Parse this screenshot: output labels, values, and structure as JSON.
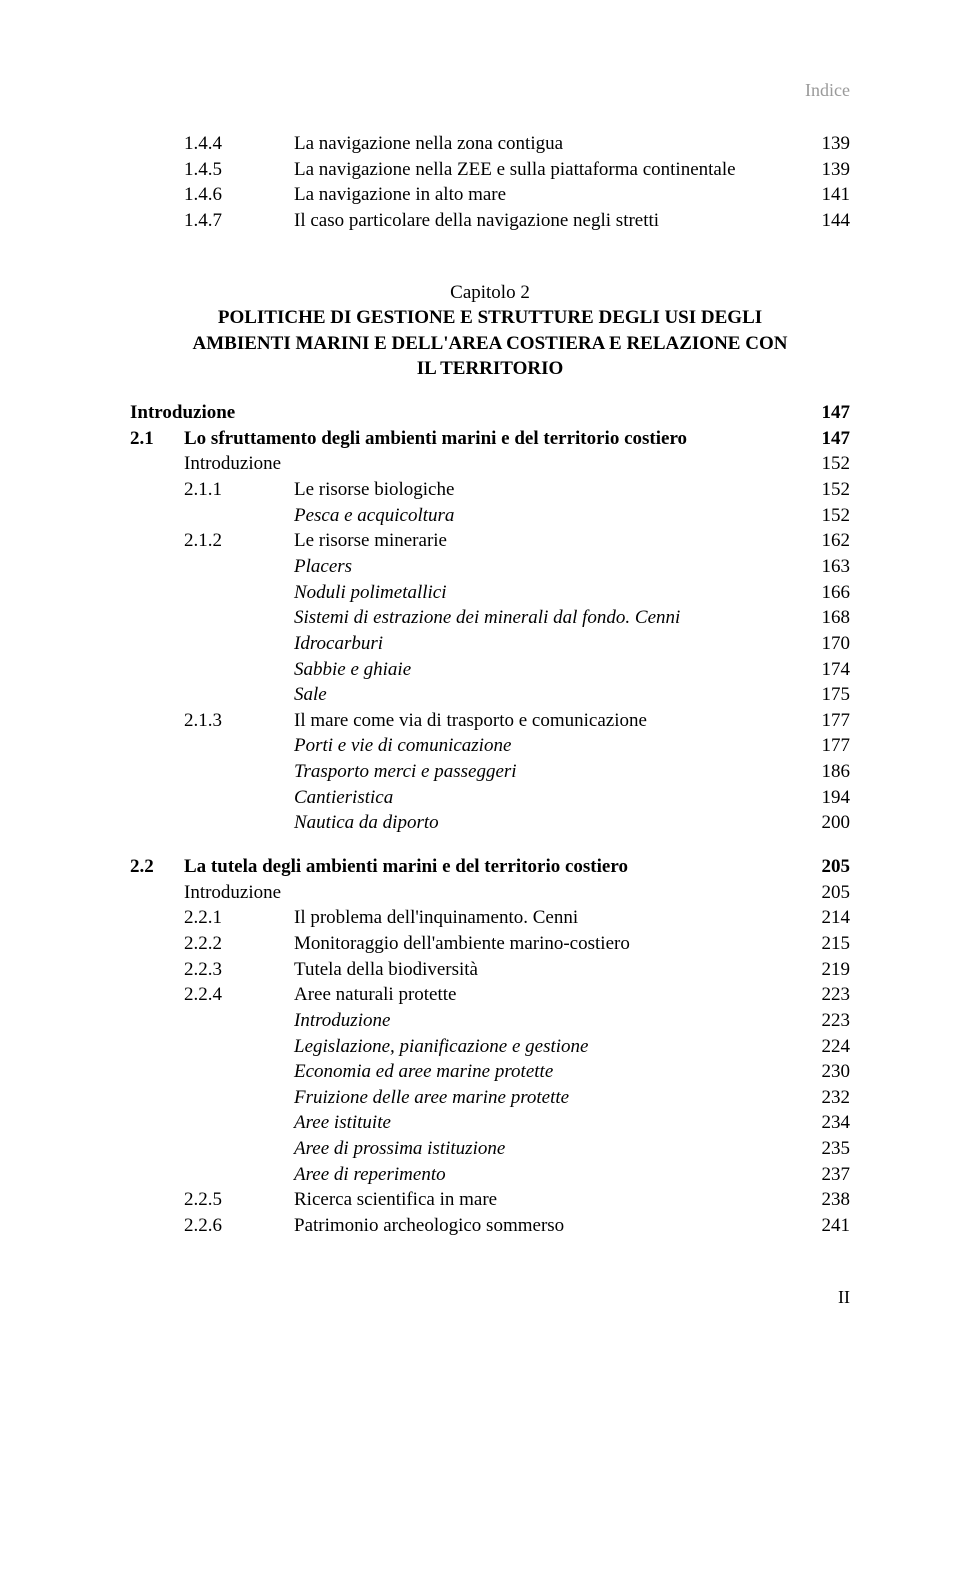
{
  "header_label": "Indice",
  "footer_label": "II",
  "top_rows": [
    {
      "num": "1.4.4",
      "txt": "La navigazione nella zona contigua",
      "pg": "139",
      "indent": "indent-2"
    },
    {
      "num": "1.4.5",
      "txt": "La navigazione nella ZEE e sulla piattaforma continentale",
      "pg": "139",
      "indent": "indent-2"
    },
    {
      "num": "1.4.6",
      "txt": "La navigazione in alto mare",
      "pg": "141",
      "indent": "indent-2"
    },
    {
      "num": "1.4.7",
      "txt": "Il caso particolare della navigazione negli stretti",
      "pg": "144",
      "indent": "indent-2"
    }
  ],
  "chapter": {
    "label": "Capitolo 2",
    "title_lines": [
      "POLITICHE DI GESTIONE E STRUTTURE DEGLI USI DEGLI",
      "AMBIENTI MARINI E DELL'AREA COSTIERA E RELAZIONE CON",
      "IL TERRITORIO"
    ]
  },
  "block2": [
    {
      "num": "",
      "txt": "Introduzione",
      "pg": "147",
      "indent": "row",
      "bold": true,
      "no_indent": true
    },
    {
      "num": "2.1",
      "txt": "Lo sfruttamento degli ambienti marini e del territorio costiero",
      "pg": "147",
      "indent": "indent-1",
      "bold": true
    },
    {
      "num": "",
      "txt": "Introduzione",
      "pg": "152",
      "indent": "indent-intro"
    },
    {
      "num": "2.1.1",
      "txt": "Le risorse biologiche",
      "pg": "152",
      "indent": "indent-2"
    },
    {
      "num": "",
      "txt": "Pesca e acquicoltura",
      "pg": "152",
      "indent": "indent-sub",
      "italic": true
    },
    {
      "num": "2.1.2",
      "txt": "Le risorse minerarie",
      "pg": "162",
      "indent": "indent-2"
    },
    {
      "num": "",
      "txt": "Placers",
      "pg": "163",
      "indent": "indent-sub",
      "italic": true
    },
    {
      "num": "",
      "txt": "Noduli polimetallici",
      "pg": "166",
      "indent": "indent-sub",
      "italic": true
    },
    {
      "num": "",
      "txt": "Sistemi di estrazione dei minerali dal fondo. Cenni",
      "pg": "168",
      "indent": "indent-sub",
      "italic": true
    },
    {
      "num": "",
      "txt": "Idrocarburi",
      "pg": "170",
      "indent": "indent-sub",
      "italic": true
    },
    {
      "num": "",
      "txt": "Sabbie e ghiaie",
      "pg": "174",
      "indent": "indent-sub",
      "italic": true
    },
    {
      "num": "",
      "txt": "Sale",
      "pg": "175",
      "indent": "indent-sub",
      "italic": true
    },
    {
      "num": "2.1.3",
      "txt": "Il mare come via di trasporto e comunicazione",
      "pg": "177",
      "indent": "indent-2"
    },
    {
      "num": "",
      "txt": "Porti e vie di comunicazione",
      "pg": "177",
      "indent": "indent-sub",
      "italic": true
    },
    {
      "num": "",
      "txt": "Trasporto merci e  passeggeri",
      "pg": "186",
      "indent": "indent-sub",
      "italic": true
    },
    {
      "num": "",
      "txt": "Cantieristica",
      "pg": "194",
      "indent": "indent-sub",
      "italic": true
    },
    {
      "num": "",
      "txt": "Nautica da diporto",
      "pg": "200",
      "indent": "indent-sub",
      "italic": true
    }
  ],
  "block3": [
    {
      "num": "2.2",
      "txt": "La tutela degli ambienti marini e del territorio costiero",
      "pg": "205",
      "indent": "indent-1",
      "bold": true
    },
    {
      "num": "",
      "txt": "Introduzione",
      "pg": "205",
      "indent": "indent-intro"
    },
    {
      "num": "2.2.1",
      "txt": "Il problema dell'inquinamento. Cenni",
      "pg": "214",
      "indent": "indent-2"
    },
    {
      "num": "2.2.2",
      "txt": "Monitoraggio dell'ambiente marino-costiero",
      "pg": "215",
      "indent": "indent-2"
    },
    {
      "num": "2.2.3",
      "txt": "Tutela della biodiversità",
      "pg": "219",
      "indent": "indent-2"
    },
    {
      "num": "2.2.4",
      "txt": "Aree naturali protette",
      "pg": "223",
      "indent": "indent-2"
    },
    {
      "num": "",
      "txt": "Introduzione",
      "pg": "223",
      "indent": "indent-sub",
      "italic": true
    },
    {
      "num": "",
      "txt": "Legislazione, pianificazione e gestione",
      "pg": "224",
      "indent": "indent-sub",
      "italic": true
    },
    {
      "num": "",
      "txt": "Economia ed aree marine protette",
      "pg": "230",
      "indent": "indent-sub",
      "italic": true
    },
    {
      "num": "",
      "txt": "Fruizione delle aree marine protette",
      "pg": "232",
      "indent": "indent-sub",
      "italic": true
    },
    {
      "num": "",
      "txt": "Aree istituite",
      "pg": "234",
      "indent": "indent-sub",
      "italic": true
    },
    {
      "num": "",
      "txt": "Aree di prossima istituzione",
      "pg": "235",
      "indent": "indent-sub",
      "italic": true
    },
    {
      "num": "",
      "txt": "Aree di reperimento",
      "pg": "237",
      "indent": "indent-sub",
      "italic": true
    },
    {
      "num": "2.2.5",
      "txt": "Ricerca scientifica in mare",
      "pg": "238",
      "indent": "indent-2"
    },
    {
      "num": "2.2.6",
      "txt": "Patrimonio archeologico sommerso",
      "pg": "241",
      "indent": "indent-2"
    }
  ]
}
